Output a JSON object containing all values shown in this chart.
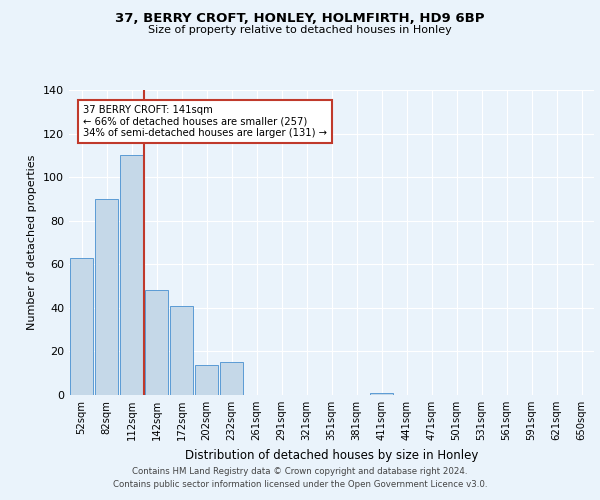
{
  "title1": "37, BERRY CROFT, HONLEY, HOLMFIRTH, HD9 6BP",
  "title2": "Size of property relative to detached houses in Honley",
  "xlabel": "Distribution of detached houses by size in Honley",
  "ylabel": "Number of detached properties",
  "bar_labels": [
    "52sqm",
    "82sqm",
    "112sqm",
    "142sqm",
    "172sqm",
    "202sqm",
    "232sqm",
    "261sqm",
    "291sqm",
    "321sqm",
    "351sqm",
    "381sqm",
    "411sqm",
    "441sqm",
    "471sqm",
    "501sqm",
    "531sqm",
    "561sqm",
    "591sqm",
    "621sqm",
    "650sqm"
  ],
  "bar_values": [
    63,
    90,
    110,
    48,
    41,
    14,
    15,
    0,
    0,
    0,
    0,
    0,
    1,
    0,
    0,
    0,
    0,
    0,
    0,
    0,
    0
  ],
  "annotation_line1": "37 BERRY CROFT: 141sqm",
  "annotation_line2": "← 66% of detached houses are smaller (257)",
  "annotation_line3": "34% of semi-detached houses are larger (131) →",
  "bar_color": "#c5d8e8",
  "bar_edge_color": "#5b9bd5",
  "vline_color": "#c0392b",
  "annotation_box_color": "#c0392b",
  "footer1": "Contains HM Land Registry data © Crown copyright and database right 2024.",
  "footer2": "Contains public sector information licensed under the Open Government Licence v3.0.",
  "ylim": [
    0,
    140
  ],
  "yticks": [
    0,
    20,
    40,
    60,
    80,
    100,
    120,
    140
  ],
  "bg_color": "#eaf3fb",
  "plot_bg_color": "#eaf3fb"
}
